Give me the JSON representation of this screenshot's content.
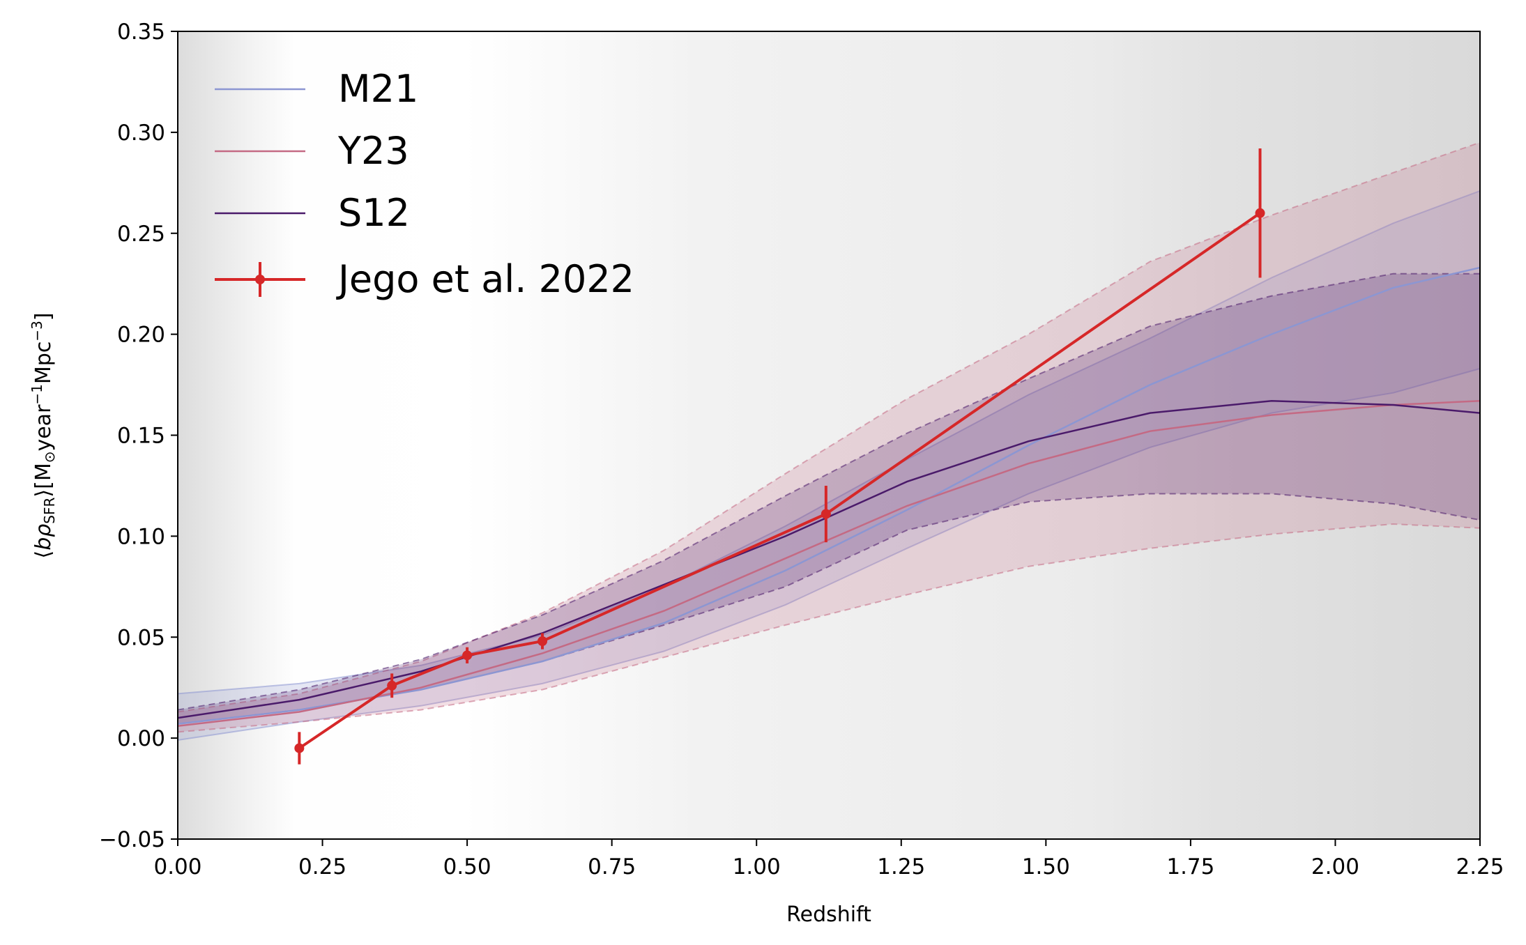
{
  "chart_data": {
    "type": "line",
    "title": "",
    "xlabel": "Redshift",
    "ylabel": "⟨bρSFR⟩[M⊙year⁻¹Mpc⁻³]",
    "ylabel_parts": {
      "open": "⟨",
      "b_rho": "bρ",
      "sfr_sub": "SFR",
      "mid": "⟩[M",
      "sun_sub": "⊙",
      "year": "year",
      "exp1": "−1",
      "mpc": "Mpc",
      "exp2": "−3",
      "close": "]"
    },
    "xlim": [
      0,
      2.25
    ],
    "ylim": [
      -0.05,
      0.35
    ],
    "xticks": [
      0.0,
      0.25,
      0.5,
      0.75,
      1.0,
      1.25,
      1.5,
      1.75,
      2.0,
      2.25
    ],
    "xtick_labels": [
      "0.00",
      "0.25",
      "0.50",
      "0.75",
      "1.00",
      "1.25",
      "1.50",
      "1.75",
      "2.00",
      "2.25"
    ],
    "yticks": [
      -0.05,
      0.0,
      0.05,
      0.1,
      0.15,
      0.2,
      0.25,
      0.3,
      0.35
    ],
    "ytick_labels": [
      "−0.05",
      "0.00",
      "0.05",
      "0.10",
      "0.15",
      "0.20",
      "0.25",
      "0.30",
      "0.35"
    ],
    "grid": false,
    "legend_position": "top-left",
    "series": [
      {
        "name": "M21",
        "color": "#8c96d2",
        "x": [
          0.0,
          0.21,
          0.42,
          0.63,
          0.84,
          1.05,
          1.26,
          1.47,
          1.68,
          1.89,
          2.1,
          2.25
        ],
        "y": [
          0.007,
          0.014,
          0.024,
          0.038,
          0.057,
          0.083,
          0.113,
          0.145,
          0.175,
          0.2,
          0.223,
          0.233
        ],
        "band_low": [
          -0.001,
          0.008,
          0.016,
          0.027,
          0.043,
          0.066,
          0.094,
          0.121,
          0.144,
          0.161,
          0.171,
          0.183
        ],
        "band_high": [
          0.022,
          0.027,
          0.036,
          0.051,
          0.075,
          0.105,
          0.138,
          0.17,
          0.198,
          0.228,
          0.255,
          0.271
        ]
      },
      {
        "name": "Y23",
        "color": "#c46a84",
        "x": [
          0.0,
          0.21,
          0.42,
          0.63,
          0.84,
          1.05,
          1.26,
          1.47,
          1.68,
          1.89,
          2.1,
          2.25
        ],
        "y": [
          0.006,
          0.013,
          0.025,
          0.042,
          0.063,
          0.089,
          0.115,
          0.136,
          0.152,
          0.16,
          0.165,
          0.167
        ],
        "band_low": [
          0.003,
          0.008,
          0.014,
          0.024,
          0.04,
          0.056,
          0.071,
          0.085,
          0.094,
          0.101,
          0.106,
          0.104
        ],
        "band_high": [
          0.013,
          0.022,
          0.038,
          0.062,
          0.093,
          0.131,
          0.168,
          0.2,
          0.236,
          0.259,
          0.28,
          0.295
        ]
      },
      {
        "name": "S12",
        "color": "#4a1a6a",
        "x": [
          0.0,
          0.21,
          0.42,
          0.63,
          0.84,
          1.05,
          1.26,
          1.47,
          1.68,
          1.89,
          2.1,
          2.25
        ],
        "y": [
          0.01,
          0.019,
          0.033,
          0.052,
          0.076,
          0.1,
          0.127,
          0.147,
          0.161,
          0.167,
          0.165,
          0.161
        ],
        "band_low": [
          0.007,
          0.014,
          0.024,
          0.038,
          0.056,
          0.075,
          0.103,
          0.117,
          0.121,
          0.121,
          0.116,
          0.108
        ],
        "band_high": [
          0.014,
          0.024,
          0.039,
          0.061,
          0.088,
          0.12,
          0.151,
          0.178,
          0.204,
          0.219,
          0.23,
          0.23
        ]
      },
      {
        "name": "Jego et al. 2022",
        "color": "#d62728",
        "x": [
          0.21,
          0.37,
          0.5,
          0.63,
          1.12,
          1.87
        ],
        "y": [
          -0.005,
          0.026,
          0.041,
          0.048,
          0.111,
          0.26
        ],
        "yerr": [
          0.008,
          0.006,
          0.004,
          0.004,
          0.014,
          0.032
        ]
      }
    ]
  }
}
